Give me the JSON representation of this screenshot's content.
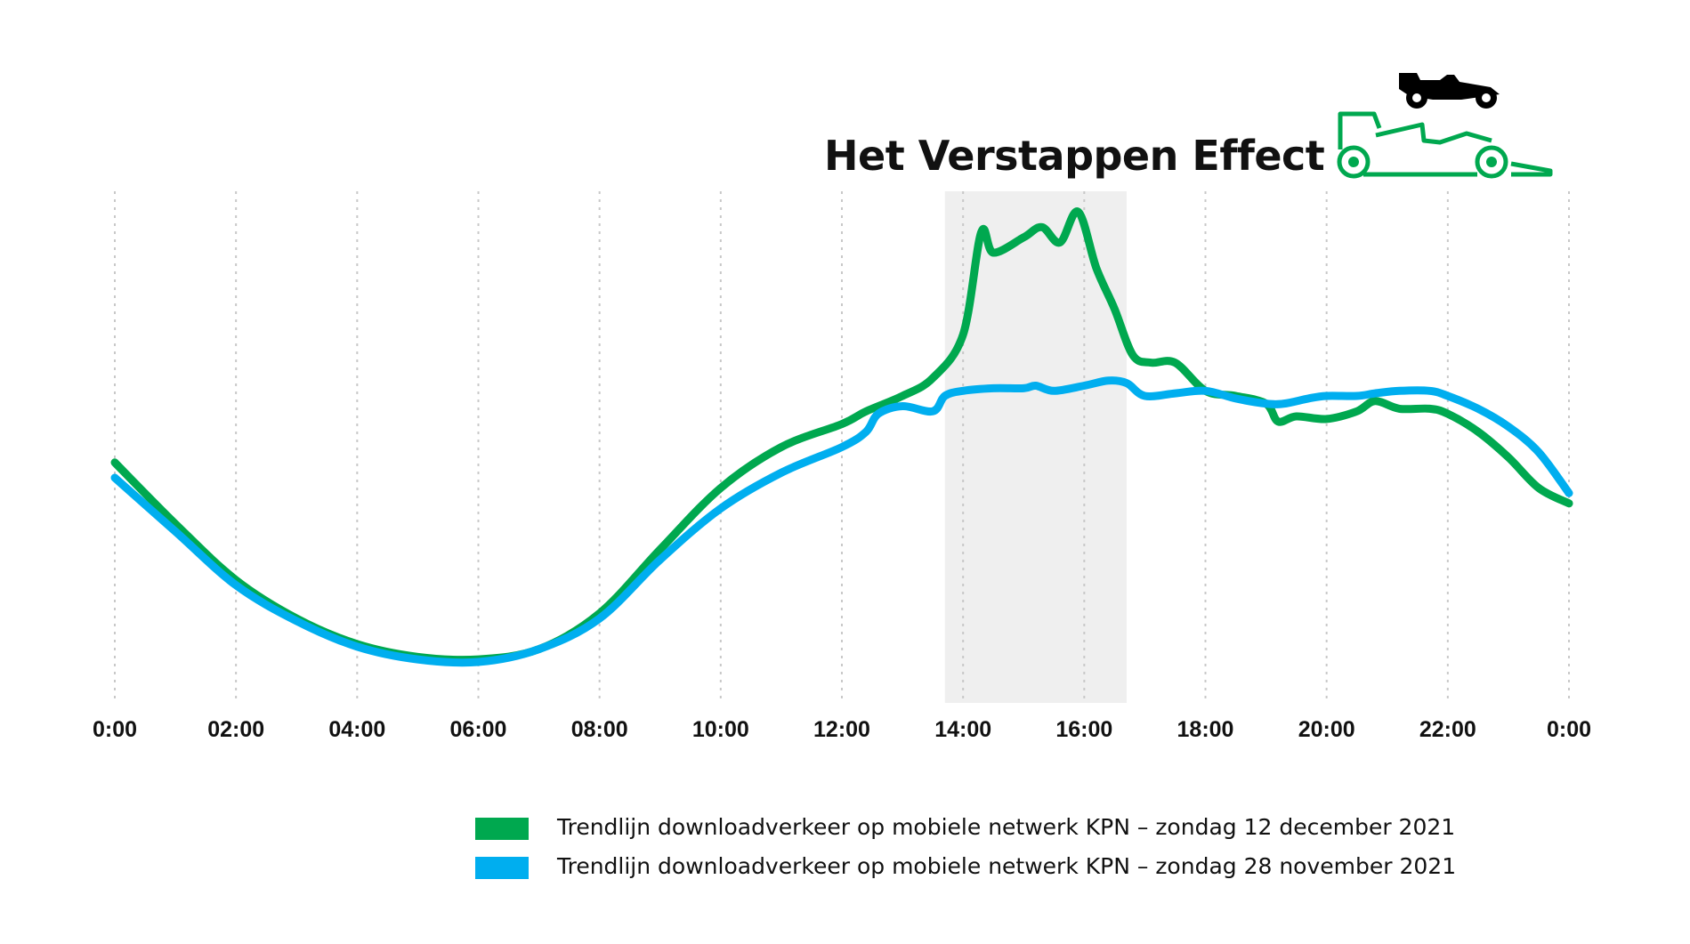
{
  "colors": {
    "green": "#00a84f",
    "blue": "#00aeef",
    "highlight": "#efefef",
    "grid": "#c8c8c8",
    "text": "#111111"
  },
  "icons": [
    "f1-car-silhouette-icon",
    "f1-car-outline-icon"
  ],
  "chart_data": {
    "type": "line",
    "title": "Het Verstappen Effect",
    "x_tick_labels": [
      "0:00",
      "02:00",
      "04:00",
      "06:00",
      "08:00",
      "10:00",
      "12:00",
      "14:00",
      "16:00",
      "18:00",
      "20:00",
      "22:00",
      "0:00"
    ],
    "xlim": [
      0,
      24
    ],
    "ylim": [
      0,
      100
    ],
    "y_axis_shown": false,
    "grid": "vertical dotted lines at each tick",
    "highlight_band": [
      13.7,
      16.7
    ],
    "legend_position": "bottom",
    "series": [
      {
        "name": "Trendlijn downloadverkeer op mobiele netwerk KPN – zondag 12 december 2021",
        "color": "#00a84f",
        "points": [
          [
            0,
            47
          ],
          [
            1,
            35
          ],
          [
            2,
            24
          ],
          [
            3,
            16.5
          ],
          [
            4,
            11.5
          ],
          [
            5,
            9
          ],
          [
            6,
            8.5
          ],
          [
            7,
            10.5
          ],
          [
            8,
            17.5
          ],
          [
            9,
            30
          ],
          [
            10,
            42
          ],
          [
            11,
            50
          ],
          [
            12,
            54.5
          ],
          [
            12.4,
            57
          ],
          [
            13,
            60
          ],
          [
            13.5,
            63.5
          ],
          [
            14,
            72
          ],
          [
            14.3,
            92
          ],
          [
            14.5,
            88
          ],
          [
            15,
            91
          ],
          [
            15.3,
            93
          ],
          [
            15.6,
            90
          ],
          [
            15.9,
            96
          ],
          [
            16.2,
            85
          ],
          [
            16.5,
            77
          ],
          [
            16.8,
            68
          ],
          [
            17.1,
            66.5
          ],
          [
            17.5,
            66.5
          ],
          [
            18,
            61
          ],
          [
            18.5,
            60
          ],
          [
            19,
            58.5
          ],
          [
            19.2,
            55
          ],
          [
            19.5,
            56
          ],
          [
            20,
            55.5
          ],
          [
            20.5,
            57
          ],
          [
            20.8,
            59
          ],
          [
            21.2,
            57.5
          ],
          [
            21.7,
            57.5
          ],
          [
            22,
            56.5
          ],
          [
            22.5,
            53
          ],
          [
            23,
            48
          ],
          [
            23.5,
            42
          ],
          [
            24,
            39
          ]
        ]
      },
      {
        "name": "Trendlijn downloadverkeer op mobiele netwerk KPN – zondag 28 november 2021",
        "color": "#00aeef",
        "points": [
          [
            0,
            44
          ],
          [
            1,
            33.5
          ],
          [
            2,
            23
          ],
          [
            3,
            16
          ],
          [
            4,
            11
          ],
          [
            5,
            8.5
          ],
          [
            6,
            8
          ],
          [
            7,
            10.5
          ],
          [
            8,
            16.5
          ],
          [
            9,
            28
          ],
          [
            10,
            38
          ],
          [
            11,
            45
          ],
          [
            12,
            50
          ],
          [
            12.4,
            53
          ],
          [
            12.6,
            56.5
          ],
          [
            13,
            58
          ],
          [
            13.5,
            57
          ],
          [
            13.7,
            60
          ],
          [
            14,
            61
          ],
          [
            14.5,
            61.5
          ],
          [
            15,
            61.5
          ],
          [
            15.2,
            62
          ],
          [
            15.5,
            61
          ],
          [
            16,
            62
          ],
          [
            16.4,
            63
          ],
          [
            16.7,
            62.5
          ],
          [
            17,
            60
          ],
          [
            17.5,
            60.5
          ],
          [
            18,
            61
          ],
          [
            18.5,
            59.5
          ],
          [
            19,
            58.5
          ],
          [
            19.3,
            58.5
          ],
          [
            19.7,
            59.5
          ],
          [
            20,
            60
          ],
          [
            20.5,
            60
          ],
          [
            20.8,
            60.5
          ],
          [
            21.2,
            61
          ],
          [
            21.7,
            61
          ],
          [
            22,
            60
          ],
          [
            22.5,
            57.5
          ],
          [
            23,
            54
          ],
          [
            23.5,
            49
          ],
          [
            24,
            41
          ]
        ]
      }
    ]
  }
}
